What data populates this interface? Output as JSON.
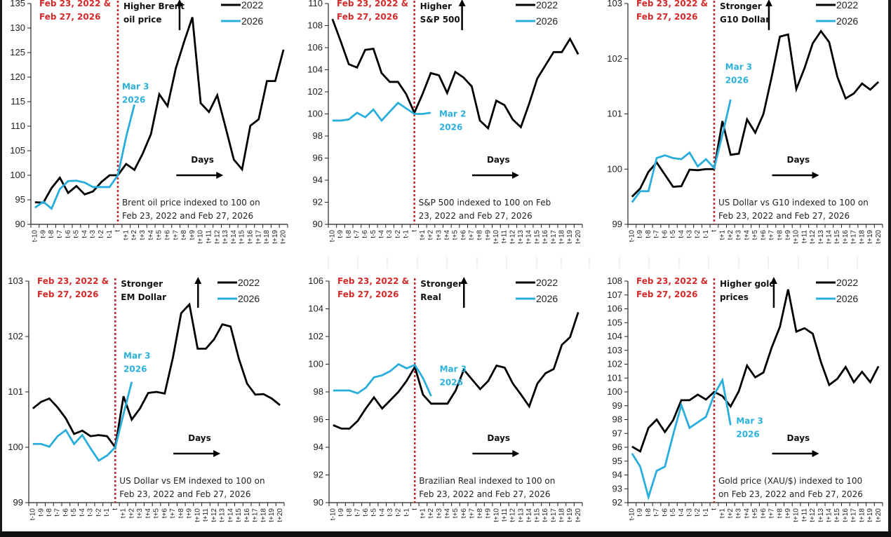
{
  "colors": {
    "series_2022": "#000000",
    "series_2026": "#29aedb",
    "event_line": "#c0272d",
    "event_text": "#d42a2a"
  },
  "common": {
    "x_categories": [
      "t-10",
      "t-9",
      "t-8",
      "t-7",
      "t-6",
      "t-5",
      "t-4",
      "t-3",
      "t-2",
      "t-1",
      "t",
      "t+1",
      "t+2",
      "t+3",
      "t+4",
      "t+5",
      "t+6",
      "t+7",
      "t+8",
      "t+9",
      "t+10",
      "t+11",
      "t+12",
      "t+13",
      "t+14",
      "t+15",
      "t+16",
      "t+17",
      "t+18",
      "t+19",
      "t+20"
    ],
    "event_label": [
      "Feb 23, 2022 &",
      "Feb 27, 2026"
    ],
    "days_label": "Days",
    "legend": [
      "2022",
      "2026"
    ]
  },
  "chart_data": [
    {
      "type": "line",
      "id": "brent",
      "title": "Brent oil price indexed to 100 on Feb 23, 2022 and Feb 27, 2026",
      "description_lines": [
        "Brent oil price indexed to 100 on",
        "Feb 23, 2022 and Feb 27, 2026"
      ],
      "direction_note": [
        "Higher Brent",
        "oil price"
      ],
      "end_note": [
        "Mar 3",
        "2026"
      ],
      "ylim": [
        90,
        135
      ],
      "yticks": [
        90,
        95,
        100,
        105,
        110,
        115,
        120,
        125,
        130,
        135
      ],
      "event_index": 10,
      "legend_position": "top-right",
      "series": [
        {
          "name": "2022",
          "values": [
            94.5,
            94.4,
            97.4,
            99.5,
            96.4,
            97.8,
            96.1,
            96.7,
            98.6,
            100.0,
            100.0,
            102.3,
            101.1,
            104.4,
            108.4,
            116.5,
            114.1,
            121.8,
            127.2,
            132.2,
            114.7,
            112.9,
            116.3,
            109.8,
            103.2,
            101.2,
            110.1,
            111.4,
            119.2,
            119.2,
            125.6
          ]
        },
        {
          "name": "2026",
          "values": [
            93.4,
            94.6,
            93.2,
            97.2,
            98.8,
            98.9,
            98.5,
            97.6,
            97.6,
            97.6,
            100.0,
            107.8,
            114.4
          ]
        }
      ]
    },
    {
      "type": "line",
      "id": "sp500",
      "title": "S&P 500 indexed to 100 on Feb 23, 2022 and Feb 27, 2026",
      "description_lines": [
        "S&P 500 indexed to 100 on Feb",
        "23, 2022 and Feb 27, 2026"
      ],
      "direction_note": [
        "Higher",
        "S&P 500"
      ],
      "end_note": [
        "Mar 2",
        "2026"
      ],
      "ylim": [
        90,
        110
      ],
      "yticks": [
        90,
        92,
        94,
        96,
        98,
        100,
        102,
        104,
        106,
        108,
        110
      ],
      "event_index": 10,
      "legend_position": "top-right",
      "series": [
        {
          "name": "2022",
          "values": [
            108.6,
            106.6,
            104.5,
            104.2,
            105.8,
            105.9,
            103.7,
            102.9,
            102.9,
            101.8,
            100.1,
            101.8,
            103.7,
            103.5,
            101.9,
            103.8,
            103.3,
            102.5,
            99.4,
            98.7,
            101.2,
            100.8,
            99.5,
            98.8,
            100.9,
            103.2,
            104.4,
            105.6,
            105.6,
            106.8,
            105.4
          ]
        },
        {
          "name": "2026",
          "values": [
            99.4,
            99.4,
            99.5,
            100.1,
            99.7,
            100.4,
            99.4,
            100.2,
            101.0,
            100.5,
            100.0,
            100.0,
            100.1
          ]
        }
      ]
    },
    {
      "type": "line",
      "id": "usd-g10",
      "title": "US Dollar vs G10 indexed to 100 on Feb 23, 2022 and Feb 27, 2026",
      "description_lines": [
        "US Dollar vs G10 indexed to 100 on",
        "Feb 23, 2022 and Feb 27, 2026"
      ],
      "direction_note": [
        "Stronger",
        "G10 Dollar"
      ],
      "end_note": [
        "Mar 3",
        "2026"
      ],
      "ylim": [
        99,
        103
      ],
      "yticks": [
        99,
        100,
        101,
        102,
        103
      ],
      "event_index": 10,
      "legend_position": "top-right",
      "series": [
        {
          "name": "2022",
          "values": [
            99.5,
            99.65,
            99.95,
            100.12,
            99.9,
            99.68,
            99.69,
            99.99,
            99.98,
            100.0,
            100.0,
            100.87,
            100.26,
            100.28,
            100.9,
            100.66,
            101.0,
            101.67,
            102.4,
            102.44,
            101.45,
            101.83,
            102.28,
            102.5,
            102.3,
            101.67,
            101.28,
            101.37,
            101.55,
            101.44,
            101.58
          ]
        },
        {
          "name": "2026",
          "values": [
            99.4,
            99.6,
            99.6,
            100.2,
            100.25,
            100.2,
            100.18,
            100.3,
            100.05,
            100.18,
            100.02,
            100.62,
            101.26
          ]
        }
      ]
    },
    {
      "type": "line",
      "id": "usd-em",
      "title": "US Dollar vs EM indexed to 100 on Feb 23, 2022 and Feb 27, 2026",
      "description_lines": [
        "US Dollar vs EM indexed to 100 on",
        "Feb 23, 2022 and Feb 27, 2026"
      ],
      "direction_note": [
        "Stronger",
        "EM Dollar"
      ],
      "end_note": [
        "Mar 3",
        "2026"
      ],
      "ylim": [
        99,
        103
      ],
      "yticks": [
        99,
        100,
        101,
        102,
        103
      ],
      "event_index": 10,
      "legend_position": "top-right",
      "series": [
        {
          "name": "2022",
          "values": [
            100.7,
            100.82,
            100.88,
            100.72,
            100.52,
            100.24,
            100.3,
            100.2,
            100.22,
            100.2,
            100.0,
            100.92,
            100.5,
            100.7,
            100.98,
            101.0,
            100.97,
            101.62,
            102.42,
            102.58,
            101.78,
            101.78,
            101.95,
            102.22,
            102.18,
            101.6,
            101.15,
            100.95,
            100.96,
            100.88,
            100.76
          ]
        },
        {
          "name": "2026",
          "values": [
            100.06,
            100.06,
            100.01,
            100.2,
            100.31,
            100.06,
            100.22,
            99.98,
            99.76,
            99.85,
            100.0,
            100.6,
            101.18
          ]
        }
      ]
    },
    {
      "type": "line",
      "id": "brl",
      "title": "Brazilian Real indexed to 100 on Feb 23, 2022 and Feb 27, 2026",
      "description_lines": [
        "Brazilian Real indexed to 100 on",
        "Feb 23, 2022 and Feb 27, 2026"
      ],
      "direction_note": [
        "Stronger",
        "Real"
      ],
      "end_note": [
        "Mar 3",
        "2026"
      ],
      "ylim": [
        90,
        106
      ],
      "yticks": [
        90,
        92,
        94,
        96,
        98,
        100,
        102,
        104,
        106
      ],
      "event_index": 10,
      "legend_position": "top-right",
      "series": [
        {
          "name": "2022",
          "values": [
            95.6,
            95.35,
            95.35,
            95.9,
            96.8,
            97.6,
            96.8,
            97.4,
            98.0,
            98.8,
            99.8,
            97.8,
            97.15,
            97.15,
            97.15,
            98.1,
            99.6,
            98.9,
            98.2,
            98.8,
            99.9,
            99.75,
            98.6,
            97.8,
            96.95,
            98.6,
            99.35,
            99.65,
            101.4,
            101.95,
            103.75
          ]
        },
        {
          "name": "2026",
          "values": [
            98.1,
            98.1,
            98.1,
            97.9,
            98.3,
            99.05,
            99.2,
            99.5,
            100.0,
            99.7,
            99.95,
            99.0,
            97.7
          ]
        }
      ]
    },
    {
      "type": "line",
      "id": "gold",
      "title": "Gold price (XAU/$) indexed to 100 on Feb 23, 2022 and Feb 27, 2026",
      "description_lines": [
        "Gold price (XAU/$) indexed to 100",
        "on Feb 23, 2022 and Feb 27, 2026"
      ],
      "direction_note": [
        "Higher gold",
        "prices"
      ],
      "end_note": [
        "Mar 3",
        "2026"
      ],
      "ylim": [
        92,
        108
      ],
      "yticks": [
        92,
        93,
        94,
        95,
        96,
        97,
        98,
        99,
        100,
        101,
        102,
        103,
        104,
        105,
        106,
        107,
        108
      ],
      "event_index": 10,
      "legend_position": "top-right",
      "series": [
        {
          "name": "2022",
          "values": [
            96.05,
            95.7,
            97.4,
            98.0,
            97.1,
            97.95,
            99.4,
            99.4,
            99.8,
            99.45,
            100.0,
            99.7,
            98.95,
            100.05,
            101.9,
            101.05,
            101.4,
            103.2,
            104.7,
            107.4,
            104.35,
            104.6,
            104.2,
            102.15,
            100.5,
            100.95,
            101.8,
            100.7,
            101.45,
            100.7,
            101.85
          ]
        },
        {
          "name": "2026",
          "values": [
            95.55,
            94.6,
            92.4,
            94.3,
            94.6,
            96.9,
            99.05,
            97.4,
            97.8,
            98.2,
            99.8,
            100.85,
            97.6
          ]
        }
      ]
    }
  ]
}
